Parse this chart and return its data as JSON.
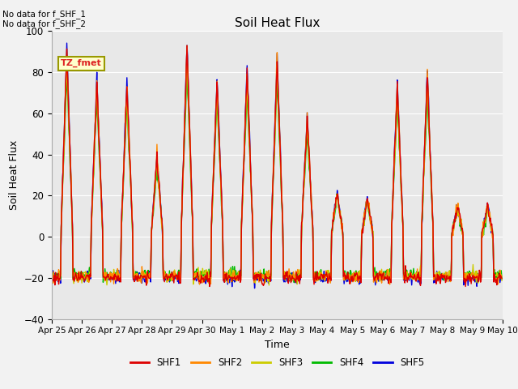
{
  "title": "Soil Heat Flux",
  "xlabel": "Time",
  "ylabel": "Soil Heat Flux",
  "ylim": [
    -40,
    100
  ],
  "n_days": 15,
  "tick_labels": [
    "Apr 25",
    "Apr 26",
    "Apr 27",
    "Apr 28",
    "Apr 29",
    "Apr 30",
    "May 1",
    "May 2",
    "May 3",
    "May 4",
    "May 5",
    "May 6",
    "May 7",
    "May 8",
    "May 9",
    "May 10"
  ],
  "series_colors": {
    "SHF1": "#dd0000",
    "SHF2": "#ff8800",
    "SHF3": "#cccc00",
    "SHF4": "#00bb00",
    "SHF5": "#0000dd"
  },
  "series_names": [
    "SHF1",
    "SHF2",
    "SHF3",
    "SHF4",
    "SHF5"
  ],
  "annotation_text": "No data for f_SHF_1\nNo data for f_SHF_2",
  "box_label": "TZ_fmet",
  "box_color": "#dd2222",
  "box_bg": "#ffffcc",
  "box_border": "#999900",
  "axes_bg": "#e8e8e8",
  "yticks": [
    -40,
    -20,
    0,
    20,
    40,
    60,
    80,
    100
  ],
  "grid_color": "#ffffff",
  "linewidth": 1.0,
  "day_peaks": [
    90,
    75,
    73,
    38,
    92,
    75,
    80,
    86,
    58,
    22,
    19,
    74,
    79,
    15,
    15
  ],
  "night_base": -20
}
